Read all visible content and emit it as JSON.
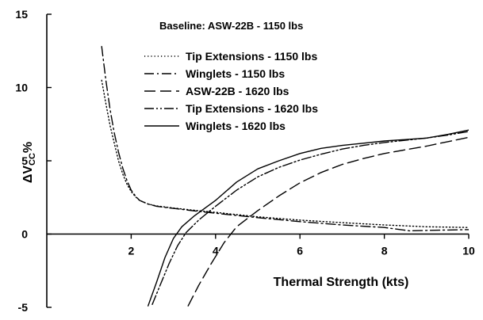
{
  "chart_data": {
    "type": "line",
    "title": "Baseline: ASW-22B - 1150 lbs",
    "xlabel": "Thermal Strength (kts)",
    "ylabel": "ΔV",
    "ylabel_sub": "CC",
    "ylabel_suffix": "%",
    "xlim": [
      0,
      10
    ],
    "ylim": [
      -5,
      15
    ],
    "xticks": [
      {
        "value": 2,
        "label": "2"
      },
      {
        "value": 4,
        "label": "4"
      },
      {
        "value": 6,
        "label": "6"
      },
      {
        "value": 8,
        "label": "8"
      },
      {
        "value": 10,
        "label": "10"
      }
    ],
    "yticks": [
      {
        "value": 15,
        "label": "15"
      },
      {
        "value": 10,
        "label": "10"
      },
      {
        "value": 5,
        "label": "5"
      },
      {
        "value": 0,
        "label": "0"
      },
      {
        "value": -5,
        "label": "-5"
      }
    ],
    "grid": false,
    "legend_position": "top-center",
    "series": [
      {
        "name": "Tip Extensions - 1150 lbs",
        "dash": "dotted",
        "points": [
          [
            1.3,
            10.5
          ],
          [
            1.4,
            8.9
          ],
          [
            1.5,
            7.4
          ],
          [
            1.6,
            6.2
          ],
          [
            1.7,
            5.0
          ],
          [
            1.8,
            4.1
          ],
          [
            1.9,
            3.4
          ],
          [
            2.0,
            2.9
          ],
          [
            2.1,
            2.55
          ],
          [
            2.2,
            2.3
          ],
          [
            2.4,
            2.05
          ],
          [
            2.6,
            1.92
          ],
          [
            2.8,
            1.85
          ],
          [
            3.0,
            1.78
          ],
          [
            3.5,
            1.62
          ],
          [
            4.0,
            1.48
          ],
          [
            5.0,
            1.18
          ],
          [
            6.0,
            0.95
          ],
          [
            7.0,
            0.78
          ],
          [
            8.0,
            0.62
          ],
          [
            9.0,
            0.5
          ],
          [
            10.0,
            0.45
          ]
        ]
      },
      {
        "name": "Winglets - 1150 lbs",
        "dash": "dash-dot",
        "points": [
          [
            1.3,
            12.8
          ],
          [
            1.4,
            10.5
          ],
          [
            1.5,
            8.5
          ],
          [
            1.6,
            6.9
          ],
          [
            1.7,
            5.6
          ],
          [
            1.8,
            4.5
          ],
          [
            1.9,
            3.65
          ],
          [
            2.0,
            3.0
          ],
          [
            2.1,
            2.6
          ],
          [
            2.2,
            2.3
          ],
          [
            2.4,
            2.05
          ],
          [
            2.6,
            1.9
          ],
          [
            2.8,
            1.82
          ],
          [
            3.0,
            1.75
          ],
          [
            3.5,
            1.58
          ],
          [
            4.0,
            1.42
          ],
          [
            5.0,
            1.12
          ],
          [
            6.0,
            0.85
          ],
          [
            7.0,
            0.62
          ],
          [
            8.0,
            0.45
          ],
          [
            8.6,
            0.22
          ],
          [
            9.0,
            0.25
          ],
          [
            10.0,
            0.3
          ]
        ]
      },
      {
        "name": "ASW-22B - 1620 lbs",
        "dash": "long-dash",
        "points": [
          [
            3.35,
            -4.9
          ],
          [
            3.6,
            -3.5
          ],
          [
            3.9,
            -2.0
          ],
          [
            4.2,
            -0.6
          ],
          [
            4.5,
            0.5
          ],
          [
            5.0,
            1.6
          ],
          [
            5.5,
            2.6
          ],
          [
            6.0,
            3.5
          ],
          [
            6.5,
            4.2
          ],
          [
            7.0,
            4.75
          ],
          [
            7.5,
            5.15
          ],
          [
            8.0,
            5.5
          ],
          [
            8.5,
            5.75
          ],
          [
            9.0,
            6.0
          ],
          [
            9.5,
            6.3
          ],
          [
            10.0,
            6.6
          ]
        ]
      },
      {
        "name": "Tip Extensions - 1620 lbs",
        "dash": "dash-dot-dot",
        "points": [
          [
            2.5,
            -4.8
          ],
          [
            2.7,
            -3.4
          ],
          [
            2.9,
            -2.0
          ],
          [
            3.1,
            -0.8
          ],
          [
            3.3,
            0.1
          ],
          [
            3.6,
            0.95
          ],
          [
            4.0,
            1.9
          ],
          [
            4.5,
            3.0
          ],
          [
            5.0,
            3.9
          ],
          [
            5.5,
            4.55
          ],
          [
            6.0,
            5.05
          ],
          [
            6.5,
            5.45
          ],
          [
            7.0,
            5.8
          ],
          [
            7.5,
            6.05
          ],
          [
            8.0,
            6.25
          ],
          [
            8.5,
            6.4
          ],
          [
            9.0,
            6.55
          ],
          [
            9.5,
            6.75
          ],
          [
            10.0,
            7.0
          ]
        ]
      },
      {
        "name": "Winglets - 1620 lbs",
        "dash": "solid",
        "points": [
          [
            2.4,
            -4.9
          ],
          [
            2.6,
            -3.3
          ],
          [
            2.8,
            -1.6
          ],
          [
            3.0,
            -0.3
          ],
          [
            3.2,
            0.5
          ],
          [
            3.5,
            1.25
          ],
          [
            4.0,
            2.3
          ],
          [
            4.5,
            3.55
          ],
          [
            5.0,
            4.45
          ],
          [
            5.5,
            5.0
          ],
          [
            6.0,
            5.5
          ],
          [
            6.5,
            5.85
          ],
          [
            7.0,
            6.05
          ],
          [
            7.5,
            6.2
          ],
          [
            8.0,
            6.35
          ],
          [
            8.5,
            6.45
          ],
          [
            9.0,
            6.55
          ],
          [
            9.5,
            6.8
          ],
          [
            10.0,
            7.1
          ]
        ]
      }
    ]
  }
}
